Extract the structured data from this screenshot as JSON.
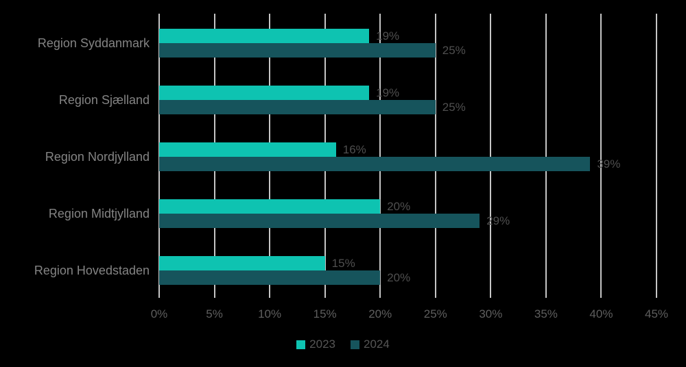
{
  "chart_data": {
    "type": "bar",
    "orientation": "horizontal",
    "title": "",
    "categories": [
      "Region Syddanmark",
      "Region Sjælland",
      "Region Nordjylland",
      "Region Midtjylland",
      "Region Hovedstaden"
    ],
    "series": [
      {
        "name": "2023",
        "color": "#0ec3b1",
        "values": [
          19,
          19,
          16,
          20,
          15
        ],
        "labels": [
          "19%",
          "19%",
          "16%",
          "20%",
          "15%"
        ]
      },
      {
        "name": "2024",
        "color": "#16545c",
        "values": [
          25,
          25,
          39,
          29,
          20
        ],
        "labels": [
          "25%",
          "25%",
          "39%",
          "29%",
          "20%"
        ]
      }
    ],
    "value_suffix": "%",
    "xlim": [
      0,
      45
    ],
    "x_tick_step": 5,
    "x_tick_labels": [
      "0%",
      "5%",
      "10%",
      "15%",
      "20%",
      "25%",
      "30%",
      "35%",
      "40%",
      "45%"
    ],
    "grid": true,
    "legend_position": "bottom"
  },
  "colors": {
    "background": "#000000",
    "gridline": "#c6c6c6",
    "category_label": "#848484",
    "value_label": "#4f4f4f",
    "tick_label": "#5e5e5e",
    "legend_label": "#565656"
  }
}
